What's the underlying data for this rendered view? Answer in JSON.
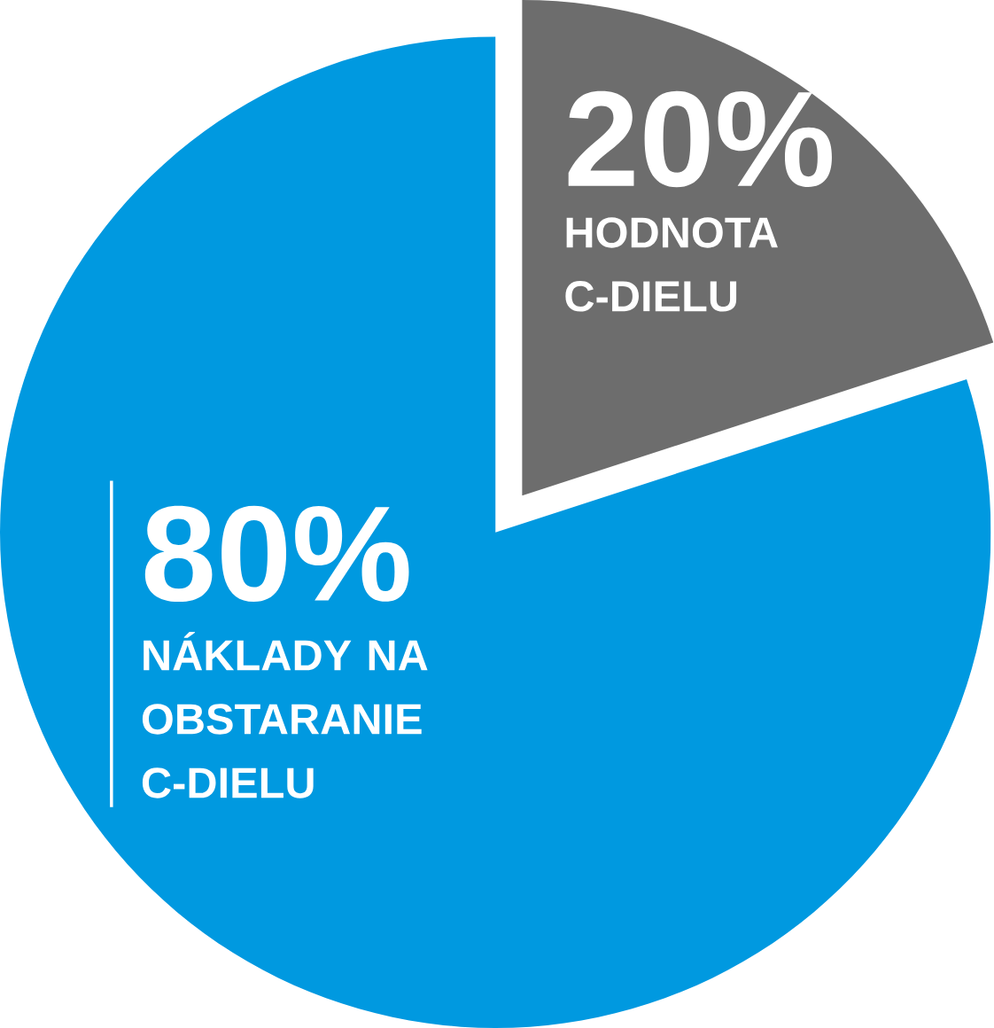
{
  "chart_data": {
    "type": "pie",
    "categories": [
      "HODNOTA C-DIELU",
      "NÁKLADY NA OBSTARANIE C-DIELU"
    ],
    "values": [
      20,
      80
    ],
    "colors": [
      "#6d6d6d",
      "#0099e0"
    ],
    "value_labels": [
      "20%",
      "80%"
    ]
  }
}
